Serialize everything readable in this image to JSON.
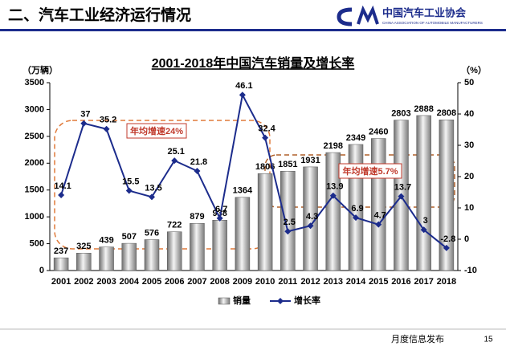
{
  "header": {
    "title": "二、汽车工业经济运行情况",
    "logo_name": "中国汽车工业协会",
    "logo_sub": "CHINA ASSOCIATION OF AUTOMOBILE MANUFACTURERS"
  },
  "footer": {
    "text": "月度信息发布",
    "page": "15"
  },
  "chart_data": {
    "type": "bar",
    "title": "2001-2018年中国汽车销量及增长率",
    "y_label": "（万辆）",
    "y2_label": "（%）",
    "categories": [
      "2001",
      "2002",
      "2003",
      "2004",
      "2005",
      "2006",
      "2007",
      "2008",
      "2009",
      "2010",
      "2011",
      "2012",
      "2013",
      "2014",
      "2015",
      "2016",
      "2017",
      "2018"
    ],
    "series": [
      {
        "name": "销量",
        "color": "#9a9a9a",
        "values": [
          237,
          325,
          439,
          507,
          576,
          722,
          879,
          938,
          1364,
          1806,
          1851,
          1931,
          2198,
          2349,
          2460,
          2803,
          2888,
          2808
        ]
      },
      {
        "name": "增长率",
        "color": "#1c2c8c",
        "type": "line",
        "axis": "y2",
        "values": [
          14.1,
          37,
          35.2,
          15.5,
          13.5,
          25.1,
          21.8,
          6.7,
          46.1,
          32.4,
          2.5,
          4.3,
          13.9,
          6.9,
          4.7,
          13.7,
          3,
          -2.8
        ]
      }
    ],
    "ylim": [
      0,
      3500
    ],
    "yticks": [
      0,
      500,
      1000,
      1500,
      2000,
      2500,
      3000,
      3500
    ],
    "y2lim": [
      -10,
      50
    ],
    "y2ticks": [
      -10,
      0,
      10,
      20,
      30,
      40,
      50
    ],
    "annotations": [
      "年均增速24%",
      "年均增速5.7%"
    ],
    "legend": "bottom"
  }
}
